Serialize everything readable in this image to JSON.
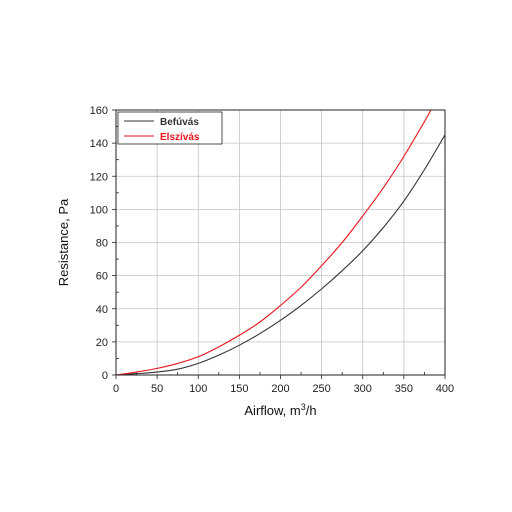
{
  "chart_data": {
    "type": "line",
    "xlabel": "Airflow, m",
    "xlabel_sup": "3",
    "xlabel_suffix": "/h",
    "ylabel": "Resistance, Pa",
    "xlim": [
      0,
      400
    ],
    "ylim": [
      0,
      160
    ],
    "x_ticks": [
      0,
      50,
      100,
      150,
      200,
      250,
      300,
      350,
      400
    ],
    "y_ticks": [
      0,
      20,
      40,
      60,
      80,
      100,
      120,
      140,
      160
    ],
    "grid": true,
    "legend": "top-left",
    "series": [
      {
        "name": "Befúvás",
        "color": "#333333",
        "x": [
          0,
          25,
          50,
          75,
          100,
          125,
          150,
          175,
          200,
          225,
          250,
          275,
          300,
          325,
          350,
          375,
          400
        ],
        "y": [
          0,
          0.8,
          1.8,
          3.5,
          7,
          12,
          18,
          25,
          33,
          42,
          52,
          63,
          75,
          89,
          105,
          124,
          145
        ]
      },
      {
        "name": "Elszívás",
        "color": "#e8141c",
        "x": [
          0,
          25,
          50,
          75,
          100,
          125,
          150,
          175,
          200,
          225,
          250,
          275,
          300,
          325,
          350,
          375,
          385
        ],
        "y": [
          0,
          1.8,
          4,
          7,
          11,
          17,
          24,
          32,
          42,
          53,
          66,
          80,
          96,
          113,
          132,
          153,
          162
        ]
      }
    ]
  }
}
